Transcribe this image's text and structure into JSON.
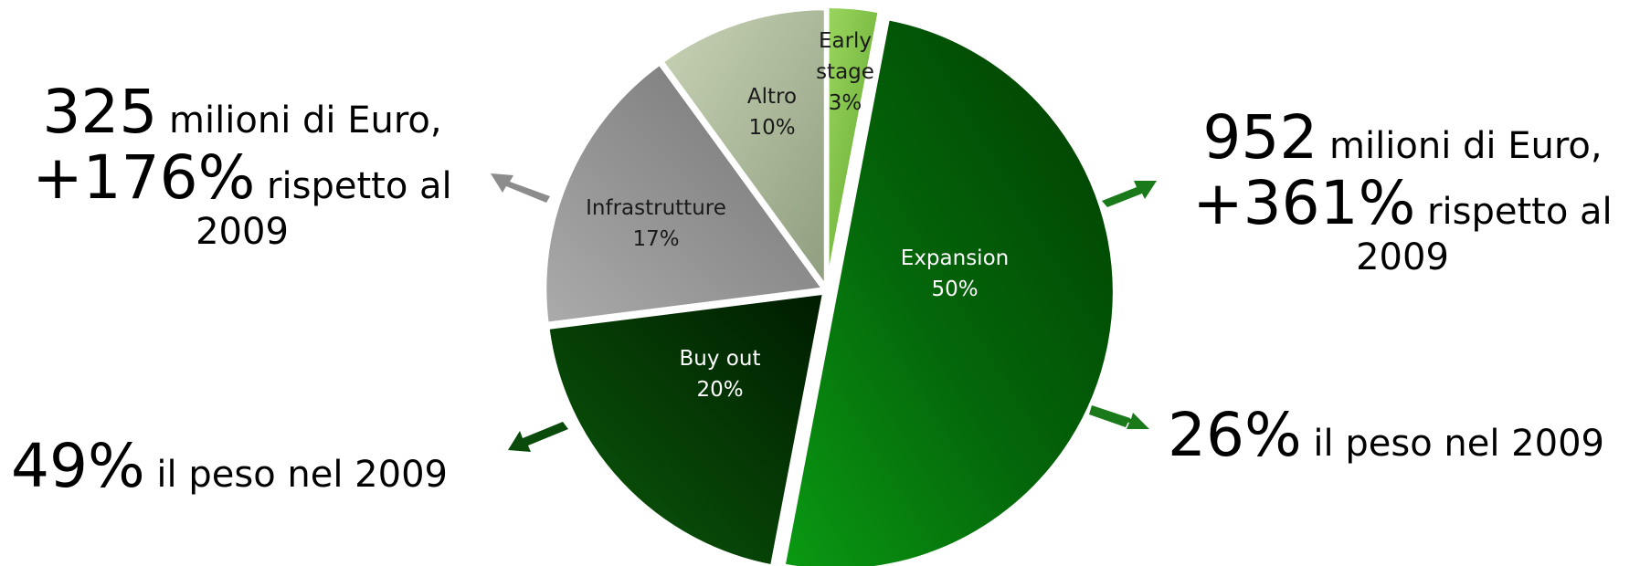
{
  "chart_data": {
    "type": "pie",
    "slices": [
      {
        "label_lines": [
          "Early",
          "stage"
        ],
        "percent_text": "3%",
        "value": 3,
        "color": "#7cc243"
      },
      {
        "label_lines": [
          "Expansion"
        ],
        "percent_text": "50%",
        "value": 50,
        "color": "#0b7f10"
      },
      {
        "label_lines": [
          "Buy out"
        ],
        "percent_text": "20%",
        "value": 20,
        "color": "#064606"
      },
      {
        "label_lines": [
          "Infrastrutture"
        ],
        "percent_text": "17%",
        "value": 17,
        "color": "#9a9a9a"
      },
      {
        "label_lines": [
          "Altro"
        ],
        "percent_text": "10%",
        "value": 10,
        "color": "#b5c2a0"
      }
    ]
  },
  "annotations": {
    "left_top": {
      "big1": "325",
      "small1": " milioni di Euro,",
      "big2": "+176%",
      "small2": " rispetto al",
      "small3": "2009"
    },
    "left_bottom": {
      "big": "49%",
      "small": " il peso nel 2009"
    },
    "right_top": {
      "big1": "952",
      "small1": " milioni di Euro,",
      "big2": "+361%",
      "small2": " rispetto al",
      "small3": "2009"
    },
    "right_bottom": {
      "big": "26%",
      "small": " il peso nel 2009"
    }
  },
  "arrow_colors": {
    "grey": "#8c8c8c",
    "dark_green": "#0a4a0a",
    "green": "#1a7a1a"
  }
}
